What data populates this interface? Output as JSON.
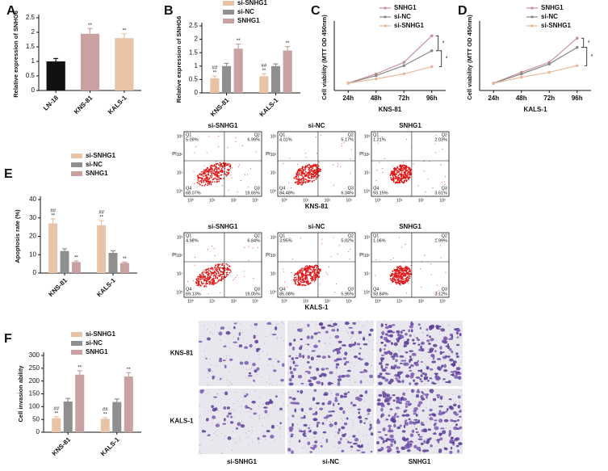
{
  "chart_data": [
    {
      "type": "bar",
      "panel_label": "A",
      "y_label": "Relative expression of SNHG6",
      "categories": [
        "LN-18",
        "KNS-81",
        "KALS-1"
      ],
      "values": [
        1.0,
        1.95,
        1.8
      ],
      "errors": [
        0.1,
        0.18,
        0.15
      ],
      "colors": [
        "#111111",
        "#c9a1a1",
        "#e8c3a6"
      ],
      "annotations": [
        null,
        "**",
        "**"
      ],
      "ylim": [
        0,
        2.5
      ],
      "yticks": [
        0,
        0.5,
        1,
        1.5,
        2,
        2.5
      ]
    },
    {
      "type": "bar",
      "panel_label": "B",
      "y_label": "Relative expression of SNHG6",
      "categories": [
        "KNS-81",
        "KALS-1"
      ],
      "series": [
        {
          "name": "si-SNHG1",
          "color": "#e8c3a6",
          "values": [
            0.55,
            0.62
          ],
          "errors": [
            0.08,
            0.09
          ],
          "annotations": [
            [
              "##",
              "**"
            ],
            [
              "##",
              "**"
            ]
          ]
        },
        {
          "name": "si-NC",
          "color": "#8f8f8f",
          "values": [
            1.0,
            1.0
          ],
          "errors": [
            0.1,
            0.08
          ]
        },
        {
          "name": "SNHG1",
          "color": "#c9a1a1",
          "values": [
            1.65,
            1.58
          ],
          "errors": [
            0.17,
            0.15
          ],
          "annotations": [
            "**",
            "**"
          ]
        }
      ],
      "ylim": [
        0,
        2.5
      ],
      "yticks": [
        0,
        0.5,
        1,
        1.5,
        2,
        2.5
      ]
    },
    {
      "type": "line",
      "panel_label": "C",
      "y_label": "Cell viability (MTT OD 450nm)",
      "x_label": "KNS-81",
      "categories": [
        "24h",
        "48h",
        "72h",
        "96h"
      ],
      "series": [
        {
          "name": "SNHG1",
          "color": "#c98f9a",
          "values": [
            0.22,
            0.5,
            0.85,
            1.65
          ]
        },
        {
          "name": "si-NC",
          "color": "#8a8a8a",
          "values": [
            0.22,
            0.45,
            0.75,
            1.2
          ]
        },
        {
          "name": "si-SNHG1",
          "color": "#e8b89e",
          "values": [
            0.22,
            0.35,
            0.5,
            0.72
          ]
        }
      ],
      "annotations": [
        "*",
        "*"
      ],
      "ylim": [
        0,
        2
      ]
    },
    {
      "type": "line",
      "panel_label": "D",
      "y_label": "Cell viability (MTT OD 450nm)",
      "x_label": "KALS-1",
      "categories": [
        "24h",
        "48h",
        "72h",
        "96h"
      ],
      "series": [
        {
          "name": "SNHG1",
          "color": "#c98f9a",
          "values": [
            0.22,
            0.55,
            0.85,
            1.58
          ]
        },
        {
          "name": "si-NC",
          "color": "#8a8a8a",
          "values": [
            0.22,
            0.5,
            0.8,
            1.3
          ]
        },
        {
          "name": "si-SNHG1",
          "color": "#e8b89e",
          "values": [
            0.22,
            0.4,
            0.55,
            0.75
          ]
        }
      ],
      "annotations": [
        "*",
        "*"
      ],
      "ylim": [
        0,
        2
      ]
    },
    {
      "type": "bar",
      "panel_label": "E",
      "y_label": "Apoptosis rate (%)",
      "categories": [
        "KNS-81",
        "KALS-1"
      ],
      "series": [
        {
          "name": "si-SNHG1",
          "color": "#e8c3a6",
          "values": [
            27,
            26
          ],
          "errors": [
            2.5,
            2.5
          ],
          "annotations": [
            [
              "##",
              "**"
            ],
            [
              "##",
              "**"
            ]
          ]
        },
        {
          "name": "si-NC",
          "color": "#8f8f8f",
          "values": [
            12,
            11
          ],
          "errors": [
            1.2,
            1.1
          ]
        },
        {
          "name": "SNHG1",
          "color": "#c9a1a1",
          "values": [
            6,
            5.5
          ],
          "errors": [
            0.6,
            0.5
          ],
          "annotations": [
            "**",
            "**"
          ]
        }
      ],
      "ylim": [
        0,
        40
      ],
      "yticks": [
        0,
        10,
        20,
        30,
        40
      ]
    },
    {
      "type": "bar",
      "panel_label": "F",
      "y_label": "Cell invasion ability",
      "categories": [
        "KNS-81",
        "KALS-1"
      ],
      "series": [
        {
          "name": "si-SNHG1",
          "color": "#e8c3a6",
          "values": [
            55,
            52
          ],
          "errors": [
            6,
            5
          ],
          "annotations": [
            [
              "##",
              "**"
            ],
            [
              "##",
              "**"
            ]
          ]
        },
        {
          "name": "si-NC",
          "color": "#8f8f8f",
          "values": [
            120,
            118
          ],
          "errors": [
            12,
            12
          ]
        },
        {
          "name": "SNHG1",
          "color": "#c9a1a1",
          "values": [
            225,
            218
          ],
          "errors": [
            15,
            15
          ],
          "annotations": [
            "**",
            "**"
          ]
        }
      ],
      "ylim": [
        0,
        300
      ],
      "yticks": [
        0,
        50,
        100,
        150,
        200,
        250,
        300
      ]
    }
  ],
  "flow_cytometry": {
    "y_label": "PI",
    "ticks": [
      "10⁰",
      "10¹",
      "10²",
      "10³"
    ],
    "rows": [
      {
        "label": "KNS-81",
        "plots": [
          {
            "title": "si-SNHG1",
            "quadrants": [
              [
                "Q1",
                "5.09%"
              ],
              [
                "Q2",
                "6.99%"
              ],
              [
                "Q3",
                "19.65%"
              ],
              [
                "Q4",
                "68.07%"
              ]
            ]
          },
          {
            "title": "si-NC",
            "quadrants": [
              [
                "Q1",
                "4.01%"
              ],
              [
                "Q2",
                "5.17%"
              ],
              [
                "Q3",
                "6.34%"
              ],
              [
                "Q4",
                "84.48%"
              ]
            ]
          },
          {
            "title": "SNHG1",
            "quadrants": [
              [
                "Q1",
                "1.21%"
              ],
              [
                "Q2",
                "2.03%"
              ],
              [
                "Q3",
                "3.61%"
              ],
              [
                "Q4",
                "93.15%"
              ]
            ]
          }
        ]
      },
      {
        "label": "KALS-1",
        "plots": [
          {
            "title": "si-SNHG1",
            "quadrants": [
              [
                "Q1",
                "4.98%"
              ],
              [
                "Q2",
                "6.84%"
              ],
              [
                "Q3",
                "19.05%"
              ],
              [
                "Q4",
                "69.13%"
              ]
            ]
          },
          {
            "title": "si-NC",
            "quadrants": [
              [
                "Q1",
                "3.95%"
              ],
              [
                "Q2",
                "5.02%"
              ],
              [
                "Q3",
                "5.95%"
              ],
              [
                "Q4",
                "85.08%"
              ]
            ]
          },
          {
            "title": "SNHG1",
            "quadrants": [
              [
                "Q1",
                "1.06%"
              ],
              [
                "Q2",
                "1.99%"
              ],
              [
                "Q3",
                "3.12%"
              ],
              [
                "Q4",
                "93.84%"
              ]
            ]
          }
        ]
      }
    ]
  },
  "invasion_images": {
    "rows": [
      "KNS-81",
      "KALS-1"
    ],
    "columns": [
      "si-SNHG1",
      "si-NC",
      "SNHG1"
    ]
  }
}
